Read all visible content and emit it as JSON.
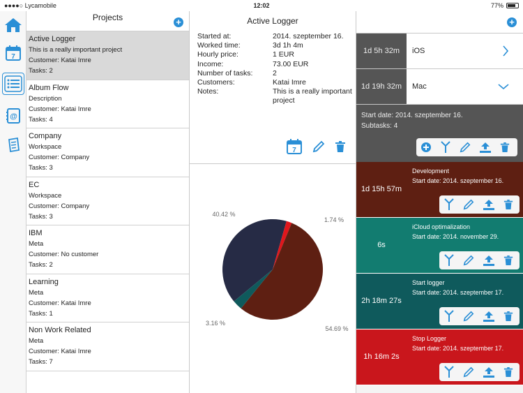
{
  "status": {
    "carrier": "●●●●○ Lycamobile",
    "time": "12:02",
    "battery": "77%"
  },
  "projects": {
    "title": "Projects",
    "items": [
      {
        "name": "Active Logger",
        "desc": "This is a really important project",
        "customer": "Customer: Katai Imre",
        "tasks": "Tasks: 2"
      },
      {
        "name": "Album Flow",
        "desc": "Description",
        "customer": "Customer: Katai Imre",
        "tasks": "Tasks: 4"
      },
      {
        "name": "Company",
        "desc": "Workspace",
        "customer": "Customer: Company",
        "tasks": "Tasks: 3"
      },
      {
        "name": "EC",
        "desc": "Workspace",
        "customer": "Customer: Company",
        "tasks": "Tasks: 3"
      },
      {
        "name": "IBM",
        "desc": "Meta",
        "customer": "Customer: No customer",
        "tasks": "Tasks: 2"
      },
      {
        "name": "Learning",
        "desc": "Meta",
        "customer": "Customer: Katai Imre",
        "tasks": "Tasks: 1"
      },
      {
        "name": "Non Work Related",
        "desc": "Meta",
        "customer": "Customer: Katai Imre",
        "tasks": "Tasks: 7"
      }
    ]
  },
  "detail": {
    "title": "Active Logger",
    "rows": [
      {
        "k": "Started at:",
        "v": "2014. szeptember 16."
      },
      {
        "k": "Worked time:",
        "v": "3d 1h 4m"
      },
      {
        "k": "Hourly price:",
        "v": "1 EUR"
      },
      {
        "k": "Income:",
        "v": "73.00 EUR"
      },
      {
        "k": "Number of tasks:",
        "v": "2"
      },
      {
        "k": "Customers:",
        "v": "Katai Imre"
      },
      {
        "k": "Notes:",
        "v": "This is a really important project"
      }
    ]
  },
  "chart_data": {
    "type": "pie",
    "values": [
      40.42,
      1.74,
      54.69,
      3.16
    ],
    "labels": [
      "40.42 %",
      "1.74 %",
      "54.69 %",
      "3.16 %"
    ],
    "colors": [
      "#262b45",
      "#e0161c",
      "#5e1f12",
      "#0f5a5c"
    ]
  },
  "categories": [
    {
      "time": "1d 5h 32m",
      "name": "iOS"
    },
    {
      "time": "1d 19h 32m",
      "name": "Mac"
    }
  ],
  "category_detail": {
    "start": "Start date: 2014. szeptember 16.",
    "subtasks": "Subtasks: 4"
  },
  "tasks": [
    {
      "time": "1d 15h 57m",
      "name": "Development",
      "start": "Start date: 2014. szeptember 16.",
      "color": "#5e1f12"
    },
    {
      "time": "6s",
      "name": "iCloud optimalization",
      "start": "Start date: 2014. november 29.",
      "color": "#127c70"
    },
    {
      "time": "2h 18m 27s",
      "name": "Start logger",
      "start": "Start date: 2014. szeptember 17.",
      "color": "#0f5a5c"
    },
    {
      "time": "1h 16m 2s",
      "name": "Stop Logger",
      "start": "Start date: 2014. szeptember 17.",
      "color": "#c9161c"
    }
  ],
  "icons": {
    "plus": "+"
  }
}
